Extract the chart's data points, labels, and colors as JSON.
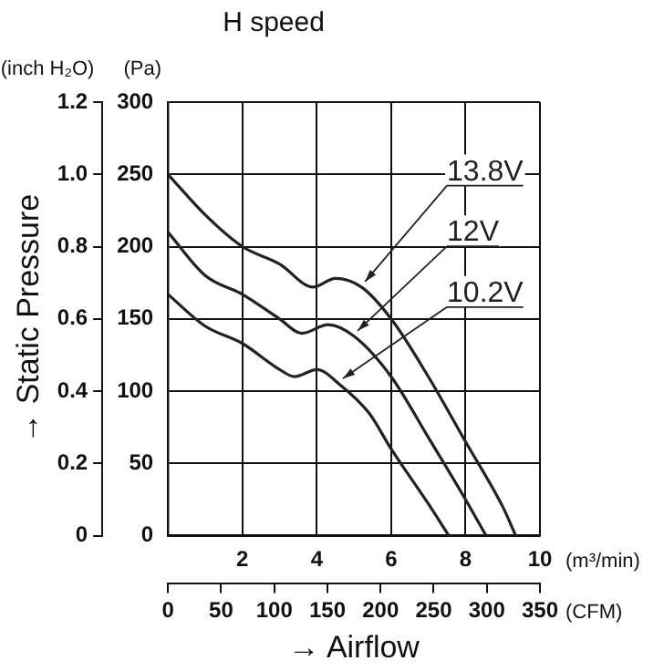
{
  "chart_data": {
    "type": "line",
    "title": "H speed",
    "xlabel": "→ Airflow",
    "ylabel": "→ Static Pressure",
    "annotations": [
      "(inch H₂O)",
      "(Pa)",
      "(m³/min)",
      "(CFM)"
    ],
    "xlim": [
      0,
      10
    ],
    "xticks": [
      {
        "value": 0,
        "label": null
      },
      2,
      4,
      6,
      8,
      10
    ],
    "ylim": [
      0,
      1.2
    ],
    "yticks": [
      0,
      0.2,
      0.4,
      0.6,
      0.8,
      {
        "value": 1,
        "label": "1.0"
      },
      1.2
    ],
    "y2lim": [
      0,
      300
    ],
    "y2ticks": [
      0,
      50,
      100,
      150,
      200,
      250,
      300
    ],
    "x2lim": [
      0,
      350
    ],
    "x2ticks": [
      0,
      50,
      100,
      150,
      200,
      250,
      300,
      350
    ],
    "grid": true,
    "marker": "none",
    "line_style": "solid",
    "series": [
      {
        "name": "13.8V",
        "color": "#222222",
        "axis": "y2",
        "x": [
          0,
          1,
          2,
          3,
          3.9,
          4.5,
          5.2,
          6,
          7,
          8,
          9,
          9.35
        ],
        "values": [
          250,
          222,
          200,
          188,
          172,
          178,
          172,
          150,
          110,
          65,
          20,
          0
        ]
      },
      {
        "name": "12V",
        "color": "#222222",
        "axis": "y2",
        "x": [
          0,
          1,
          2,
          3,
          3.6,
          4.3,
          5,
          6,
          7,
          8,
          8.55
        ],
        "values": [
          210,
          180,
          167,
          150,
          140,
          146,
          138,
          110,
          68,
          25,
          0
        ]
      },
      {
        "name": "10.2V",
        "color": "#222222",
        "axis": "y2",
        "x": [
          0,
          1,
          2,
          3,
          3.4,
          4,
          4.6,
          5.4,
          6,
          7,
          7.55
        ],
        "values": [
          167,
          145,
          133,
          115,
          110,
          115,
          105,
          85,
          60,
          22,
          0
        ]
      }
    ]
  }
}
